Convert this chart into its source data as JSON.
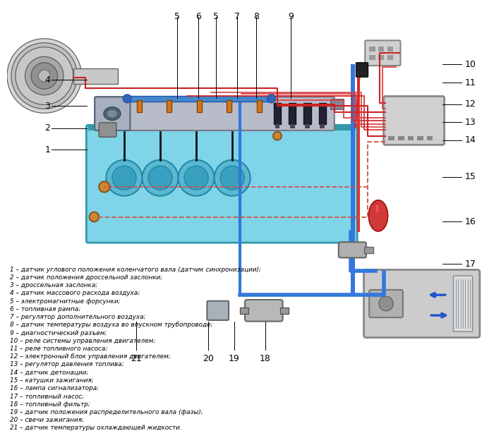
{
  "bg_color": "#ffffff",
  "labels": [
    "1 – датчик углового положения коленчатого вала (датчик синхронизации);",
    "2 – датчик положения дроссельной заслонки;",
    "3 – дроссельная заслонка;",
    "4 – датчик массового расхода воздуха;",
    "5 – электромагнитные форсунки;",
    "6 – топливная рампа;",
    "7 – регулятор дополнительного воздуха;",
    "8 – датчик температуры воздуха во впускном трубопроводе;",
    "9 – диагностический разъем;",
    "10 – реле системы управления двигателем;",
    "11 – реле топливного насоса;",
    "12 – электронный блок управления двигателем;",
    "13 – регулятор давления топлива;",
    "14 – датчик детонации;",
    "15 – катушки зажигания;",
    "16 – лампа сигнализатора;",
    "17 – топливный насос;",
    "18 – топливный фильтр;",
    "19 – датчик положения распределительного вала (фазы);",
    "20 – свечи зажигания;",
    "21 – датчик температуры охлаждающей жидкости."
  ]
}
